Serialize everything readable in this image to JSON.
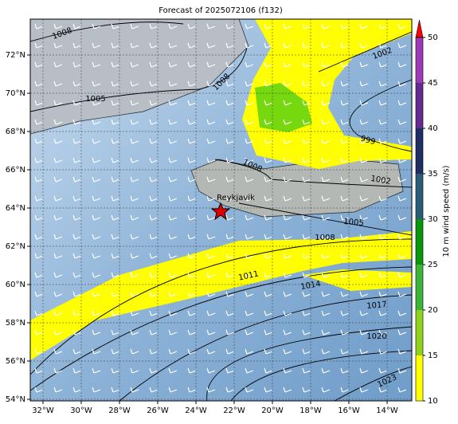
{
  "title": "Forecast of 2025072106 (f132)",
  "lat_labels": [
    "72°N",
    "70°N",
    "68°N",
    "66°N",
    "64°N",
    "62°N",
    "60°N",
    "58°N",
    "56°N",
    "54°N"
  ],
  "lon_labels": [
    "32°W",
    "30°W",
    "28°W",
    "26°W",
    "24°W",
    "22°W",
    "20°W",
    "18°W",
    "16°W",
    "14°W"
  ],
  "isobar_labels": [
    "1008",
    "1005",
    "1008",
    "1002",
    "999",
    "1008",
    "1002",
    "1005",
    "1008",
    "1011",
    "1014",
    "1017",
    "1020",
    "1023"
  ],
  "city": "Reykjavik",
  "colorbar": {
    "label": "10 m wind speed (m/s)",
    "lim": [
      10,
      50
    ],
    "ticks": [
      10,
      15,
      20,
      25,
      30,
      35,
      40,
      45,
      50
    ],
    "colors": [
      "#ffff00",
      "#8fd21c",
      "#3cb43c",
      "#0a960a",
      "#2a5c78",
      "#1e2f62",
      "#662a90",
      "#9c3cb4"
    ],
    "extend_color": "#ff0000"
  }
}
